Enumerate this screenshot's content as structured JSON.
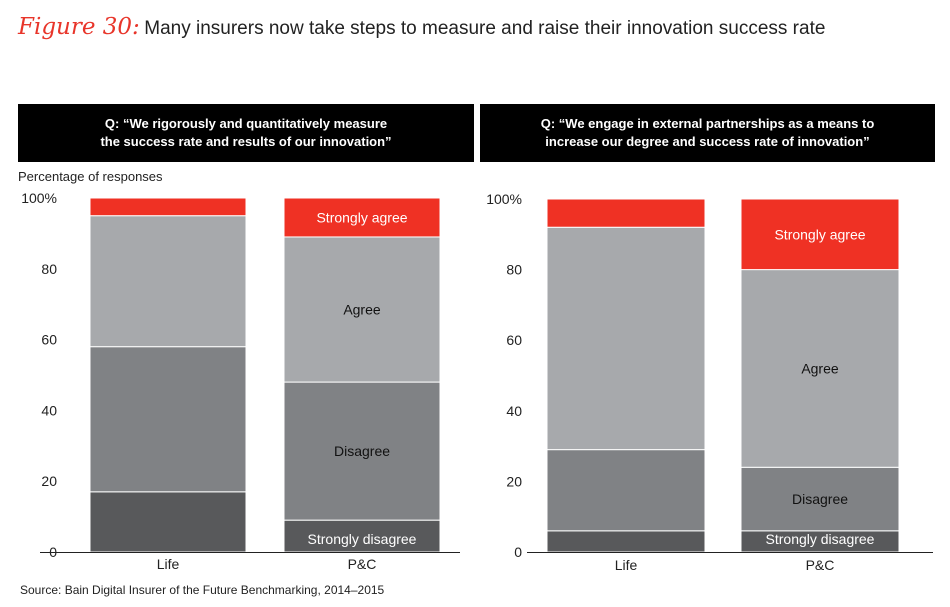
{
  "figure": {
    "label": "Figure 30:",
    "title": "Many insurers now take steps to measure and raise their innovation success rate"
  },
  "source": "Source: Bain Digital Insurer of the Future Benchmarking, 2014–2015",
  "colors": {
    "strongly_agree": "#ef3124",
    "agree": "#a7a9ac",
    "disagree": "#808285",
    "strongly_disagree": "#58595b",
    "header_bg": "#000000",
    "header_text": "#ffffff"
  },
  "chart_data": [
    {
      "type": "bar",
      "stacked": true,
      "question_lines": [
        "Q: “We rigorously and quantitatively measure",
        "the success rate and results of our innovation”"
      ],
      "ylabel": "Percentage of responses",
      "ylim": [
        0,
        100
      ],
      "yticks": [
        "0",
        "20",
        "40",
        "60",
        "80",
        "100%"
      ],
      "categories": [
        "Life",
        "P&C"
      ],
      "series": [
        {
          "name": "Strongly disagree",
          "values": [
            17,
            9
          ]
        },
        {
          "name": "Disagree",
          "values": [
            41,
            39
          ]
        },
        {
          "name": "Agree",
          "values": [
            37,
            41
          ]
        },
        {
          "name": "Strongly agree",
          "values": [
            5,
            11
          ]
        }
      ],
      "segment_labels": [
        "Strongly agree",
        "Agree",
        "Disagree",
        "Strongly disagree"
      ]
    },
    {
      "type": "bar",
      "stacked": true,
      "question_lines": [
        "Q: “We engage in external partnerships as a means to",
        "increase our degree and success rate of innovation”"
      ],
      "ylim": [
        0,
        100
      ],
      "yticks": [
        "0",
        "20",
        "40",
        "60",
        "80",
        "100%"
      ],
      "categories": [
        "Life",
        "P&C"
      ],
      "series": [
        {
          "name": "Strongly disagree",
          "values": [
            6,
            6
          ]
        },
        {
          "name": "Disagree",
          "values": [
            23,
            18
          ]
        },
        {
          "name": "Agree",
          "values": [
            63,
            56
          ]
        },
        {
          "name": "Strongly agree",
          "values": [
            8,
            20
          ]
        }
      ],
      "segment_labels": [
        "Strongly agree",
        "Agree",
        "Disagree",
        "Strongly disagree"
      ]
    }
  ]
}
